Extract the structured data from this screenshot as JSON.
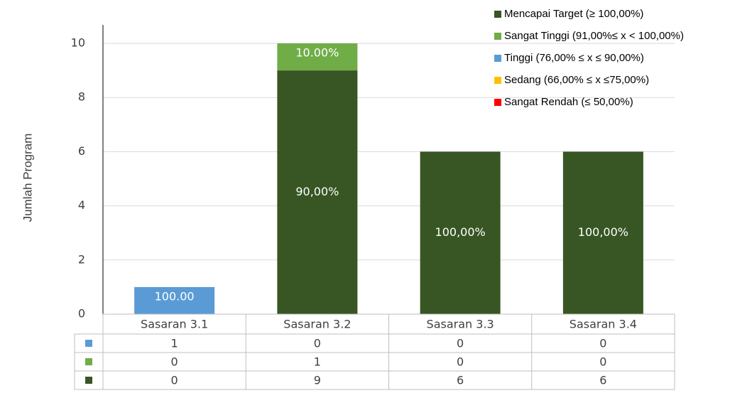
{
  "chart_data": {
    "type": "bar",
    "stacked": true,
    "y_label": "Jumlah Program",
    "categories": [
      "Sasaran 3.1",
      "Sasaran 3.2",
      "Sasaran 3.3",
      "Sasaran 3.4"
    ],
    "series": [
      {
        "name": "Mencapai Target (≥ 100,00%)",
        "color": "#375623",
        "values": [
          0,
          9,
          6,
          6
        ],
        "percent_labels": [
          null,
          "90,00%",
          "100,00%",
          "100,00%"
        ]
      },
      {
        "name": "Sangat Tinggi (91,00%≤ x < 100,00%)",
        "color": "#70ad47",
        "values": [
          0,
          1,
          0,
          0
        ],
        "percent_labels": [
          null,
          "10.00%",
          null,
          null
        ]
      },
      {
        "name": "Tinggi (76,00% ≤ x ≤ 90,00%)",
        "color": "#5b9bd5",
        "values": [
          1,
          0,
          0,
          0
        ],
        "percent_labels": [
          "100.00",
          null,
          null,
          null
        ]
      },
      {
        "name": "Sedang (66,00% ≤ x ≤75,00%)",
        "color": "#ffc000",
        "values": [
          null,
          null,
          null,
          null
        ]
      },
      {
        "name": "Sangat Rendah (≤ 50,00%)",
        "color": "#ff0000",
        "values": [
          null,
          null,
          null,
          null
        ]
      }
    ],
    "ylim": [
      0,
      10
    ],
    "yticks": [
      0,
      2,
      4,
      6,
      8,
      10
    ],
    "grid": true,
    "legend": "top-right",
    "data_table": true
  }
}
